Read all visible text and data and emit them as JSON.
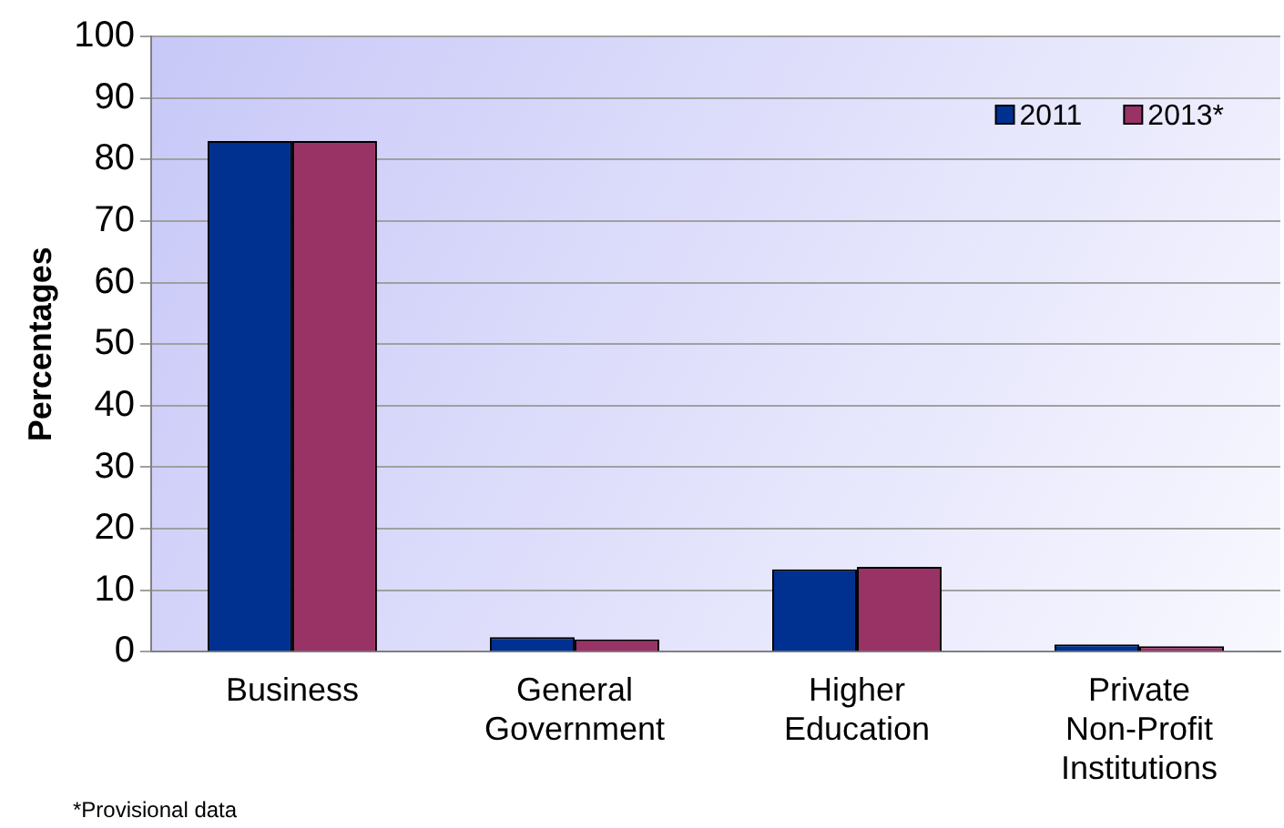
{
  "chart_data": {
    "type": "bar",
    "ylabel": "Percentages",
    "categories": [
      "Business",
      "General Government",
      "Higher Education",
      "Private Non-Profit Institutions"
    ],
    "series": [
      {
        "name": "2011",
        "color": "#003090",
        "values": [
          83,
          2.4,
          13.4,
          1.2
        ]
      },
      {
        "name": "2013*",
        "color": "#993366",
        "values": [
          83,
          2,
          13.8,
          0.9
        ]
      }
    ],
    "ylim": [
      0,
      100
    ],
    "yticks": [
      0,
      10,
      20,
      30,
      40,
      50,
      60,
      70,
      80,
      90,
      100
    ],
    "grid": "y",
    "legend": "top right",
    "annotations": [
      "*Provisional data"
    ]
  }
}
